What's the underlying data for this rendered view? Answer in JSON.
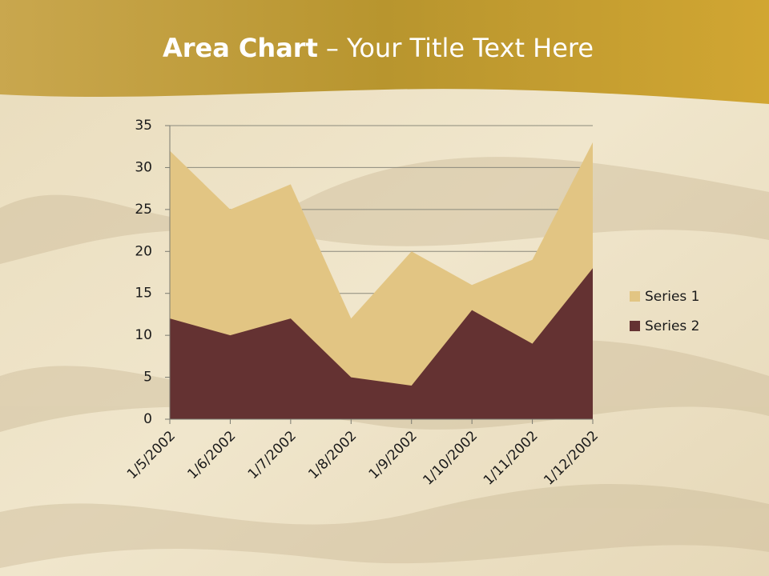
{
  "chart_data": {
    "type": "area",
    "title": [
      "Area Chart",
      "– Your Title Text Here"
    ],
    "categories": [
      "1/5/2002",
      "1/6/2002",
      "1/7/2002",
      "1/8/2002",
      "1/9/2002",
      "1/10/2002",
      "1/11/2002",
      "1/12/2002"
    ],
    "series": [
      {
        "name": "Series 1",
        "color": "#e2c583",
        "values": [
          32,
          25,
          28,
          12,
          20,
          16,
          19,
          33
        ]
      },
      {
        "name": "Series 2",
        "color": "#643232",
        "values": [
          12,
          10,
          12,
          5,
          4,
          13,
          9,
          18
        ]
      }
    ],
    "ylim": [
      0,
      35
    ],
    "yticks": [
      0,
      5,
      10,
      15,
      20,
      25,
      30,
      35
    ],
    "grid": true,
    "legend": "right"
  }
}
